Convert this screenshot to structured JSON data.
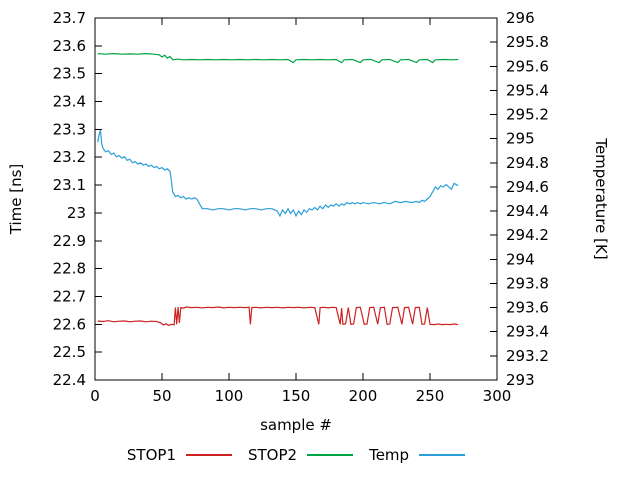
{
  "chart_data": {
    "type": "line",
    "title": "",
    "xlabel": "sample #",
    "ylabel": "Time [ns]",
    "y2label": "Temperature [K]",
    "xlim": [
      0,
      300
    ],
    "ylim": [
      22.4,
      23.7
    ],
    "y2lim": [
      293,
      296
    ],
    "grid": false,
    "legend_position": "below",
    "background": "#ffffff",
    "axis_color": "#000000",
    "x_ticks": [
      0,
      50,
      100,
      150,
      200,
      250,
      300
    ],
    "x_tick_labels": [
      "0",
      "50",
      "100",
      "150",
      "200",
      "250",
      "300"
    ],
    "y_ticks": [
      23.7,
      23.6,
      23.5,
      23.4,
      23.3,
      23.2,
      23.1,
      23.0,
      22.9,
      22.8,
      22.7,
      22.6,
      22.5,
      22.4
    ],
    "y_tick_labels": [
      "23.7",
      "23.6",
      "23.5",
      "23.4",
      "23.3",
      "23.2",
      "23.1",
      "23",
      "22.9",
      "22.8",
      "22.7",
      "22.6",
      "22.5",
      "22.4"
    ],
    "y2_ticks": [
      296,
      295.8,
      295.6,
      295.4,
      295.2,
      295,
      294.8,
      294.6,
      294.4,
      294.2,
      294,
      293.8,
      293.6,
      293.4,
      293.2,
      293
    ],
    "y2_tick_labels": [
      "296",
      "295.8",
      "295.6",
      "295.4",
      "295.2",
      "295",
      "294.8",
      "294.6",
      "294.4",
      "294.2",
      "294",
      "293.8",
      "293.6",
      "293.4",
      "293.2",
      "293"
    ],
    "series": [
      {
        "name": "STOP1",
        "color": "#cc2222",
        "axis": "y1",
        "points": [
          [
            2,
            22.612
          ],
          [
            6,
            22.61
          ],
          [
            10,
            22.613
          ],
          [
            14,
            22.609
          ],
          [
            18,
            22.611
          ],
          [
            22,
            22.612
          ],
          [
            26,
            22.609
          ],
          [
            30,
            22.611
          ],
          [
            34,
            22.612
          ],
          [
            38,
            22.609
          ],
          [
            42,
            22.611
          ],
          [
            46,
            22.61
          ],
          [
            49,
            22.605
          ],
          [
            51,
            22.598
          ],
          [
            53,
            22.602
          ],
          [
            55,
            22.596
          ],
          [
            57,
            22.6
          ],
          [
            59,
            22.598
          ],
          [
            60,
            22.66
          ],
          [
            61,
            22.6
          ],
          [
            62,
            22.662
          ],
          [
            63,
            22.605
          ],
          [
            64,
            22.66
          ],
          [
            66,
            22.658
          ],
          [
            68,
            22.662
          ],
          [
            72,
            22.66
          ],
          [
            76,
            22.661
          ],
          [
            80,
            22.659
          ],
          [
            84,
            22.661
          ],
          [
            88,
            22.66
          ],
          [
            92,
            22.662
          ],
          [
            96,
            22.659
          ],
          [
            100,
            22.661
          ],
          [
            104,
            22.66
          ],
          [
            108,
            22.661
          ],
          [
            112,
            22.66
          ],
          [
            115,
            22.661
          ],
          [
            116,
            22.6
          ],
          [
            117,
            22.66
          ],
          [
            120,
            22.661
          ],
          [
            124,
            22.659
          ],
          [
            128,
            22.661
          ],
          [
            132,
            22.66
          ],
          [
            136,
            22.661
          ],
          [
            140,
            22.659
          ],
          [
            144,
            22.661
          ],
          [
            148,
            22.66
          ],
          [
            152,
            22.661
          ],
          [
            156,
            22.659
          ],
          [
            160,
            22.661
          ],
          [
            164,
            22.66
          ],
          [
            167,
            22.6
          ],
          [
            168,
            22.66
          ],
          [
            171,
            22.661
          ],
          [
            174,
            22.659
          ],
          [
            177,
            22.661
          ],
          [
            180,
            22.66
          ],
          [
            183,
            22.6
          ],
          [
            184,
            22.658
          ],
          [
            185,
            22.6
          ],
          [
            187,
            22.602
          ],
          [
            189,
            22.66
          ],
          [
            191,
            22.6
          ],
          [
            193,
            22.601
          ],
          [
            195,
            22.66
          ],
          [
            198,
            22.661
          ],
          [
            201,
            22.6
          ],
          [
            203,
            22.601
          ],
          [
            205,
            22.66
          ],
          [
            208,
            22.661
          ],
          [
            211,
            22.6
          ],
          [
            213,
            22.66
          ],
          [
            216,
            22.661
          ],
          [
            218,
            22.6
          ],
          [
            220,
            22.601
          ],
          [
            222,
            22.66
          ],
          [
            226,
            22.661
          ],
          [
            229,
            22.6
          ],
          [
            231,
            22.66
          ],
          [
            234,
            22.661
          ],
          [
            237,
            22.6
          ],
          [
            239,
            22.66
          ],
          [
            242,
            22.661
          ],
          [
            244,
            22.6
          ],
          [
            246,
            22.601
          ],
          [
            248,
            22.66
          ],
          [
            250,
            22.6
          ],
          [
            253,
            22.599
          ],
          [
            256,
            22.601
          ],
          [
            259,
            22.599
          ],
          [
            262,
            22.6
          ],
          [
            265,
            22.599
          ],
          [
            268,
            22.601
          ],
          [
            271,
            22.599
          ]
        ]
      },
      {
        "name": "STOP2",
        "color": "#00a344",
        "axis": "y1",
        "points": [
          [
            2,
            23.572
          ],
          [
            8,
            23.57
          ],
          [
            14,
            23.572
          ],
          [
            20,
            23.57
          ],
          [
            26,
            23.571
          ],
          [
            32,
            23.57
          ],
          [
            38,
            23.572
          ],
          [
            44,
            23.57
          ],
          [
            48,
            23.568
          ],
          [
            50,
            23.56
          ],
          [
            52,
            23.566
          ],
          [
            54,
            23.556
          ],
          [
            56,
            23.562
          ],
          [
            58,
            23.55
          ],
          [
            62,
            23.552
          ],
          [
            66,
            23.55
          ],
          [
            72,
            23.551
          ],
          [
            78,
            23.55
          ],
          [
            84,
            23.551
          ],
          [
            90,
            23.55
          ],
          [
            96,
            23.551
          ],
          [
            102,
            23.55
          ],
          [
            108,
            23.551
          ],
          [
            114,
            23.55
          ],
          [
            120,
            23.551
          ],
          [
            126,
            23.55
          ],
          [
            132,
            23.551
          ],
          [
            138,
            23.55
          ],
          [
            144,
            23.551
          ],
          [
            148,
            23.54
          ],
          [
            150,
            23.55
          ],
          [
            156,
            23.551
          ],
          [
            162,
            23.55
          ],
          [
            168,
            23.551
          ],
          [
            174,
            23.55
          ],
          [
            180,
            23.551
          ],
          [
            184,
            23.54
          ],
          [
            186,
            23.55
          ],
          [
            192,
            23.551
          ],
          [
            198,
            23.54
          ],
          [
            200,
            23.55
          ],
          [
            206,
            23.551
          ],
          [
            212,
            23.54
          ],
          [
            214,
            23.55
          ],
          [
            220,
            23.551
          ],
          [
            226,
            23.54
          ],
          [
            228,
            23.55
          ],
          [
            234,
            23.551
          ],
          [
            240,
            23.54
          ],
          [
            242,
            23.55
          ],
          [
            248,
            23.551
          ],
          [
            252,
            23.54
          ],
          [
            254,
            23.55
          ],
          [
            260,
            23.551
          ],
          [
            266,
            23.55
          ],
          [
            271,
            23.551
          ]
        ]
      },
      {
        "name": "Temp",
        "color": "#2b9fd8",
        "axis": "y2",
        "points": [
          [
            2,
            294.97
          ],
          [
            3,
            295.03
          ],
          [
            4,
            295.07
          ],
          [
            5,
            294.96
          ],
          [
            6,
            294.92
          ],
          [
            8,
            294.89
          ],
          [
            10,
            294.9
          ],
          [
            12,
            294.87
          ],
          [
            14,
            294.88
          ],
          [
            16,
            294.85
          ],
          [
            18,
            294.86
          ],
          [
            20,
            294.84
          ],
          [
            22,
            294.85
          ],
          [
            24,
            294.82
          ],
          [
            26,
            294.83
          ],
          [
            28,
            294.8
          ],
          [
            30,
            294.81
          ],
          [
            32,
            294.79
          ],
          [
            34,
            294.8
          ],
          [
            36,
            294.78
          ],
          [
            38,
            294.79
          ],
          [
            40,
            294.77
          ],
          [
            42,
            294.78
          ],
          [
            44,
            294.76
          ],
          [
            46,
            294.77
          ],
          [
            48,
            294.75
          ],
          [
            50,
            294.76
          ],
          [
            52,
            294.74
          ],
          [
            54,
            294.75
          ],
          [
            56,
            294.73
          ],
          [
            57,
            294.65
          ],
          [
            58,
            294.56
          ],
          [
            60,
            294.52
          ],
          [
            62,
            294.53
          ],
          [
            64,
            294.51
          ],
          [
            66,
            294.52
          ],
          [
            68,
            294.5
          ],
          [
            70,
            294.51
          ],
          [
            72,
            294.5
          ],
          [
            74,
            294.51
          ],
          [
            76,
            294.5
          ],
          [
            78,
            294.46
          ],
          [
            80,
            294.42
          ],
          [
            84,
            294.42
          ],
          [
            88,
            294.41
          ],
          [
            92,
            294.42
          ],
          [
            96,
            294.42
          ],
          [
            100,
            294.41
          ],
          [
            104,
            294.42
          ],
          [
            108,
            294.42
          ],
          [
            112,
            294.41
          ],
          [
            116,
            294.42
          ],
          [
            120,
            294.42
          ],
          [
            124,
            294.41
          ],
          [
            128,
            294.42
          ],
          [
            132,
            294.42
          ],
          [
            136,
            294.4
          ],
          [
            138,
            294.36
          ],
          [
            140,
            294.41
          ],
          [
            142,
            294.38
          ],
          [
            144,
            294.42
          ],
          [
            146,
            294.38
          ],
          [
            148,
            294.41
          ],
          [
            150,
            294.36
          ],
          [
            152,
            294.4
          ],
          [
            154,
            294.37
          ],
          [
            156,
            294.41
          ],
          [
            158,
            294.39
          ],
          [
            160,
            294.42
          ],
          [
            162,
            294.41
          ],
          [
            164,
            294.43
          ],
          [
            166,
            294.41
          ],
          [
            168,
            294.44
          ],
          [
            170,
            294.42
          ],
          [
            172,
            294.45
          ],
          [
            174,
            294.43
          ],
          [
            176,
            294.45
          ],
          [
            178,
            294.44
          ],
          [
            180,
            294.46
          ],
          [
            182,
            294.44
          ],
          [
            184,
            294.46
          ],
          [
            186,
            294.45
          ],
          [
            188,
            294.47
          ],
          [
            190,
            294.46
          ],
          [
            192,
            294.47
          ],
          [
            194,
            294.46
          ],
          [
            196,
            294.47
          ],
          [
            198,
            294.46
          ],
          [
            200,
            294.47
          ],
          [
            204,
            294.46
          ],
          [
            208,
            294.47
          ],
          [
            212,
            294.46
          ],
          [
            216,
            294.47
          ],
          [
            220,
            294.46
          ],
          [
            224,
            294.48
          ],
          [
            228,
            294.47
          ],
          [
            232,
            294.48
          ],
          [
            236,
            294.47
          ],
          [
            240,
            294.48
          ],
          [
            242,
            294.47
          ],
          [
            244,
            294.49
          ],
          [
            246,
            294.48
          ],
          [
            248,
            294.5
          ],
          [
            250,
            294.52
          ],
          [
            252,
            294.56
          ],
          [
            254,
            294.6
          ],
          [
            256,
            294.58
          ],
          [
            258,
            294.61
          ],
          [
            260,
            294.6
          ],
          [
            262,
            294.62
          ],
          [
            264,
            294.6
          ],
          [
            266,
            294.58
          ],
          [
            268,
            294.63
          ],
          [
            271,
            294.61
          ]
        ]
      }
    ]
  }
}
